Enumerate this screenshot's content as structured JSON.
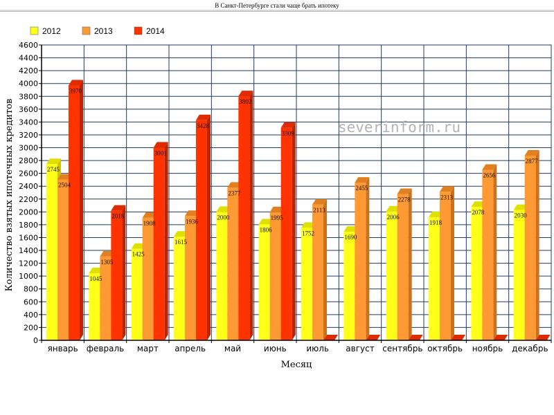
{
  "page": {
    "title": "В Санкт-Петербурге стали чаще брать ипотеку",
    "watermark": "severinform.ru"
  },
  "colors": {
    "grid": "#1f3a5f",
    "axis": "#000000",
    "series_front": [
      "#ffff1a",
      "#ff9933",
      "#ff3300"
    ],
    "series_top": [
      "#e0e000",
      "#e08020",
      "#e02a00"
    ],
    "series_side": [
      "#d6c200",
      "#c9721f",
      "#b82600"
    ]
  },
  "chart_data": {
    "type": "bar",
    "title": "",
    "xlabel": "Месяц",
    "ylabel": "Количество взятых ипотечных кредитов",
    "ylim": [
      0,
      4600
    ],
    "ytick_step": 200,
    "grid": true,
    "legend_position": "top-left",
    "categories": [
      "январь",
      "февраль",
      "март",
      "апрель",
      "май",
      "июнь",
      "июль",
      "август",
      "сентябрь",
      "октябрь",
      "ноябрь",
      "декабрь"
    ],
    "series": [
      {
        "name": "2012",
        "values": [
          2745,
          1045,
          1425,
          1615,
          2000,
          1806,
          1752,
          1690,
          2006,
          1918,
          2078,
          2030
        ]
      },
      {
        "name": "2013",
        "values": [
          2504,
          1305,
          1908,
          1936,
          2377,
          1995,
          2113,
          2455,
          2278,
          2313,
          2656,
          2877
        ]
      },
      {
        "name": "2014",
        "values": [
          3970,
          2018,
          3001,
          3428,
          3802,
          3309,
          0,
          0,
          0,
          0,
          0,
          0
        ]
      }
    ],
    "data_labels": [
      [
        "2745",
        "1045",
        "1425",
        "1615",
        "2000",
        "1806",
        "1752",
        "1690",
        "2006",
        "1918",
        "2078",
        "2030"
      ],
      [
        "2504",
        "1305",
        "1908",
        "1936",
        "2377",
        "1995",
        "2113",
        "2455",
        "2278",
        "2313",
        "2656",
        "2877"
      ],
      [
        "3970",
        "2018",
        "3001",
        "3428",
        "3802",
        "3309",
        "",
        "",
        "",
        "",
        "",
        ""
      ]
    ]
  }
}
